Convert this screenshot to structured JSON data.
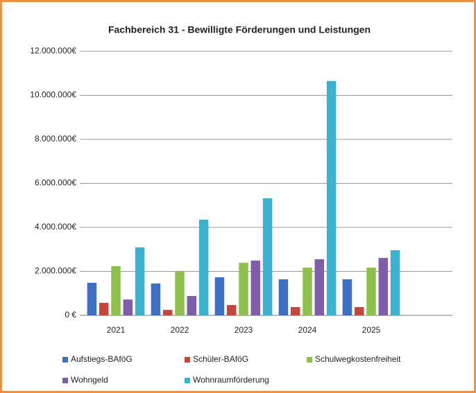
{
  "chart_data": {
    "type": "bar",
    "title": "Fachbereich 31 - Bewilligte Förderungen und Leistungen",
    "categories": [
      "2021",
      "2022",
      "2023",
      "2024",
      "2025"
    ],
    "series": [
      {
        "name": "Aufstiegs-BAföG",
        "color": "#3f6fc2",
        "values": [
          1480000,
          1450000,
          1730000,
          1640000,
          1640000
        ]
      },
      {
        "name": "Schüler-BAföG",
        "color": "#c4463f",
        "values": [
          570000,
          250000,
          470000,
          380000,
          380000
        ]
      },
      {
        "name": "Schulwegkostenfreiheit",
        "color": "#8fc04f",
        "values": [
          2240000,
          1980000,
          2390000,
          2170000,
          2170000
        ]
      },
      {
        "name": "Wohngeld",
        "color": "#7e5ea9",
        "values": [
          720000,
          880000,
          2490000,
          2550000,
          2610000
        ]
      },
      {
        "name": "Wohnraumförderung",
        "color": "#3cb2d0",
        "values": [
          3090000,
          4350000,
          5320000,
          10650000,
          2960000
        ]
      }
    ],
    "ylim": [
      0,
      12000000
    ],
    "yticks": [
      {
        "value": 0,
        "label": "0 €"
      },
      {
        "value": 2000000,
        "label": "2.000.000€"
      },
      {
        "value": 4000000,
        "label": "4.000.000€"
      },
      {
        "value": 6000000,
        "label": "6.000.000€"
      },
      {
        "value": 8000000,
        "label": "8.000.000€"
      },
      {
        "value": 10000000,
        "label": "10.000.000€"
      },
      {
        "value": 12000000,
        "label": "12.000.000€"
      }
    ],
    "grid": true,
    "legend": "bottom"
  }
}
